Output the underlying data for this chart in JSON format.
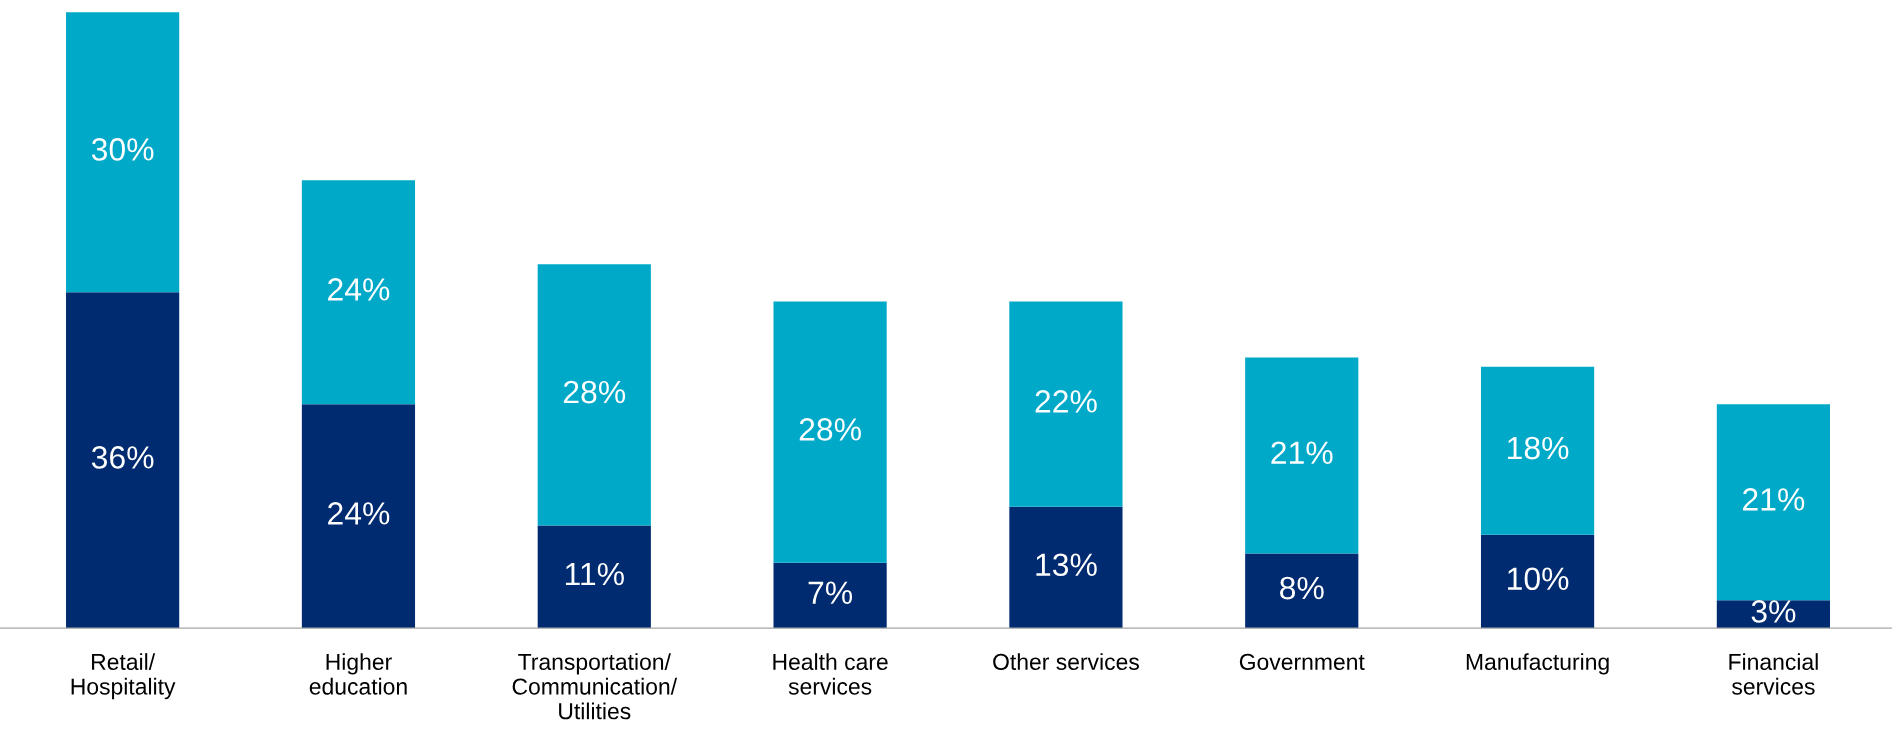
{
  "chart_data": {
    "type": "bar",
    "stacked": true,
    "grid": false,
    "categories": [
      "Retail/\nHospitality",
      "Higher\neducation",
      "Transportation/\nCommunication/\nUtilities",
      "Health care\nservices",
      "Other services",
      "Government",
      "Manufacturing",
      "Financial\nservices"
    ],
    "series": [
      {
        "color": "#002b70",
        "values": [
          36,
          24,
          11,
          7,
          13,
          8,
          10,
          3
        ],
        "value_labels": [
          "36%",
          "24%",
          "11%",
          "7%",
          "13%",
          "8%",
          "10%",
          "3%"
        ]
      },
      {
        "color": "#00a9c8",
        "values": [
          30,
          24,
          28,
          28,
          22,
          21,
          18,
          21
        ],
        "value_labels": [
          "30%",
          "24%",
          "28%",
          "28%",
          "22%",
          "21%",
          "18%",
          "21%"
        ]
      }
    ]
  }
}
